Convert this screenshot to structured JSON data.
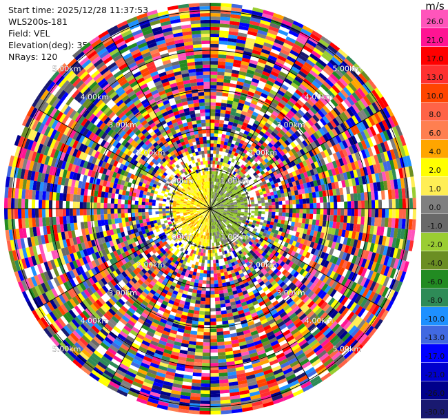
{
  "header": {
    "start_time": "Start time: 2025/12/28 11:37:53",
    "instrument": "WLS200s-181",
    "field": "Field: VEL",
    "elevation": "Elevation(deg): 35.00",
    "nrays": "NRays: 120"
  },
  "colorbar": {
    "unit": "m/s",
    "segments": [
      {
        "label": "26.0",
        "color": "#ff55bb"
      },
      {
        "label": "21.0",
        "color": "#ff1493"
      },
      {
        "label": "17.0",
        "color": "#ff0000"
      },
      {
        "label": "13.0",
        "color": "#ff3030"
      },
      {
        "label": "10.0",
        "color": "#ff4500"
      },
      {
        "label": "8.0",
        "color": "#ff6347"
      },
      {
        "label": "6.0",
        "color": "#ff7f50"
      },
      {
        "label": "4.0",
        "color": "#ffa500"
      },
      {
        "label": "2.0",
        "color": "#ffff00"
      },
      {
        "label": "1.0",
        "color": "#ffee55"
      },
      {
        "label": "0.0",
        "color": "#808080"
      },
      {
        "label": "-1.0",
        "color": "#696969"
      },
      {
        "label": "-2.0",
        "color": "#9acd32"
      },
      {
        "label": "-4.0",
        "color": "#6b8e23"
      },
      {
        "label": "-6.0",
        "color": "#228b22"
      },
      {
        "label": "-8.0",
        "color": "#2e8b57"
      },
      {
        "label": "-10.0",
        "color": "#1e90ff"
      },
      {
        "label": "-13.0",
        "color": "#4169e1"
      },
      {
        "label": "-17.0",
        "color": "#0000ff"
      },
      {
        "label": "-21.0",
        "color": "#0000cd"
      },
      {
        "label": "-26.0",
        "color": "#00008b"
      },
      {
        "label": "-30.0",
        "color": "#191970"
      }
    ]
  },
  "chart_data": {
    "type": "heatmap",
    "projection": "polar",
    "field": "VEL",
    "nrays": 120,
    "range_rings_km": [
      1,
      2,
      3,
      4,
      5
    ],
    "ring_labels": {
      "1": "1.00km",
      "2": "2.00km",
      "3": "3.00km",
      "4": "4.00km",
      "5": "5.00km"
    },
    "max_range_km": 5.2,
    "spoke_angles_deg": [
      0,
      30,
      60,
      90,
      120,
      150
    ],
    "pattern": "inner zone (< about 1 km) yellow on the left half (positive), olive/green on the right half (negative); outer gates are noise"
  }
}
